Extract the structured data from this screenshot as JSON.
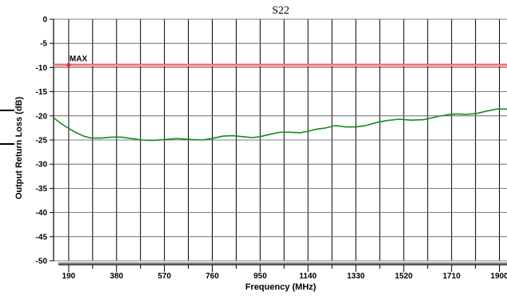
{
  "chart_data": {
    "type": "line",
    "title": "S22",
    "xlabel": "Frequency (MHz)",
    "ylabel": "Output Return Loss (dB)",
    "xlim": [
      130,
      1930
    ],
    "ylim": [
      -50,
      0
    ],
    "x_ticks": [
      190,
      380,
      570,
      760,
      950,
      1140,
      1330,
      1520,
      1710,
      1900
    ],
    "y_ticks": [
      0,
      -5,
      -10,
      -15,
      -20,
      -25,
      -30,
      -35,
      -40,
      -45,
      -50
    ],
    "grid": true,
    "series": [
      {
        "color": "#1a8c1a",
        "points": [
          [
            130,
            -20.4
          ],
          [
            160,
            -21.6
          ],
          [
            190,
            -22.6
          ],
          [
            220,
            -23.5
          ],
          [
            250,
            -24.2
          ],
          [
            280,
            -24.6
          ],
          [
            320,
            -24.6
          ],
          [
            360,
            -24.4
          ],
          [
            400,
            -24.4
          ],
          [
            440,
            -24.7
          ],
          [
            480,
            -25.0
          ],
          [
            520,
            -25.1
          ],
          [
            570,
            -24.9
          ],
          [
            620,
            -24.7
          ],
          [
            680,
            -24.9
          ],
          [
            720,
            -25.0
          ],
          [
            760,
            -24.7
          ],
          [
            800,
            -24.2
          ],
          [
            840,
            -24.1
          ],
          [
            880,
            -24.3
          ],
          [
            920,
            -24.5
          ],
          [
            950,
            -24.3
          ],
          [
            990,
            -23.8
          ],
          [
            1030,
            -23.4
          ],
          [
            1070,
            -23.4
          ],
          [
            1110,
            -23.5
          ],
          [
            1140,
            -23.2
          ],
          [
            1170,
            -22.8
          ],
          [
            1210,
            -22.5
          ],
          [
            1250,
            -22.0
          ],
          [
            1290,
            -22.3
          ],
          [
            1330,
            -22.3
          ],
          [
            1370,
            -22.0
          ],
          [
            1410,
            -21.4
          ],
          [
            1450,
            -21.0
          ],
          [
            1500,
            -20.7
          ],
          [
            1550,
            -20.9
          ],
          [
            1600,
            -20.8
          ],
          [
            1650,
            -20.2
          ],
          [
            1690,
            -19.8
          ],
          [
            1730,
            -19.6
          ],
          [
            1770,
            -19.7
          ],
          [
            1810,
            -19.5
          ],
          [
            1850,
            -19.0
          ],
          [
            1890,
            -18.6
          ],
          [
            1930,
            -18.6
          ]
        ]
      },
      {
        "color": "#e03030",
        "points": [
          [
            130,
            -9.5
          ],
          [
            1930,
            -9.5
          ]
        ]
      }
    ],
    "annotations": [
      {
        "text": "MAX",
        "x": 190,
        "y": -9.5
      }
    ],
    "colors": {
      "limit_line": "#e03030",
      "marker": "#e03030",
      "trace": "#1a8c1a",
      "grid": "#000000",
      "horizontal_grid": "#555555"
    }
  }
}
